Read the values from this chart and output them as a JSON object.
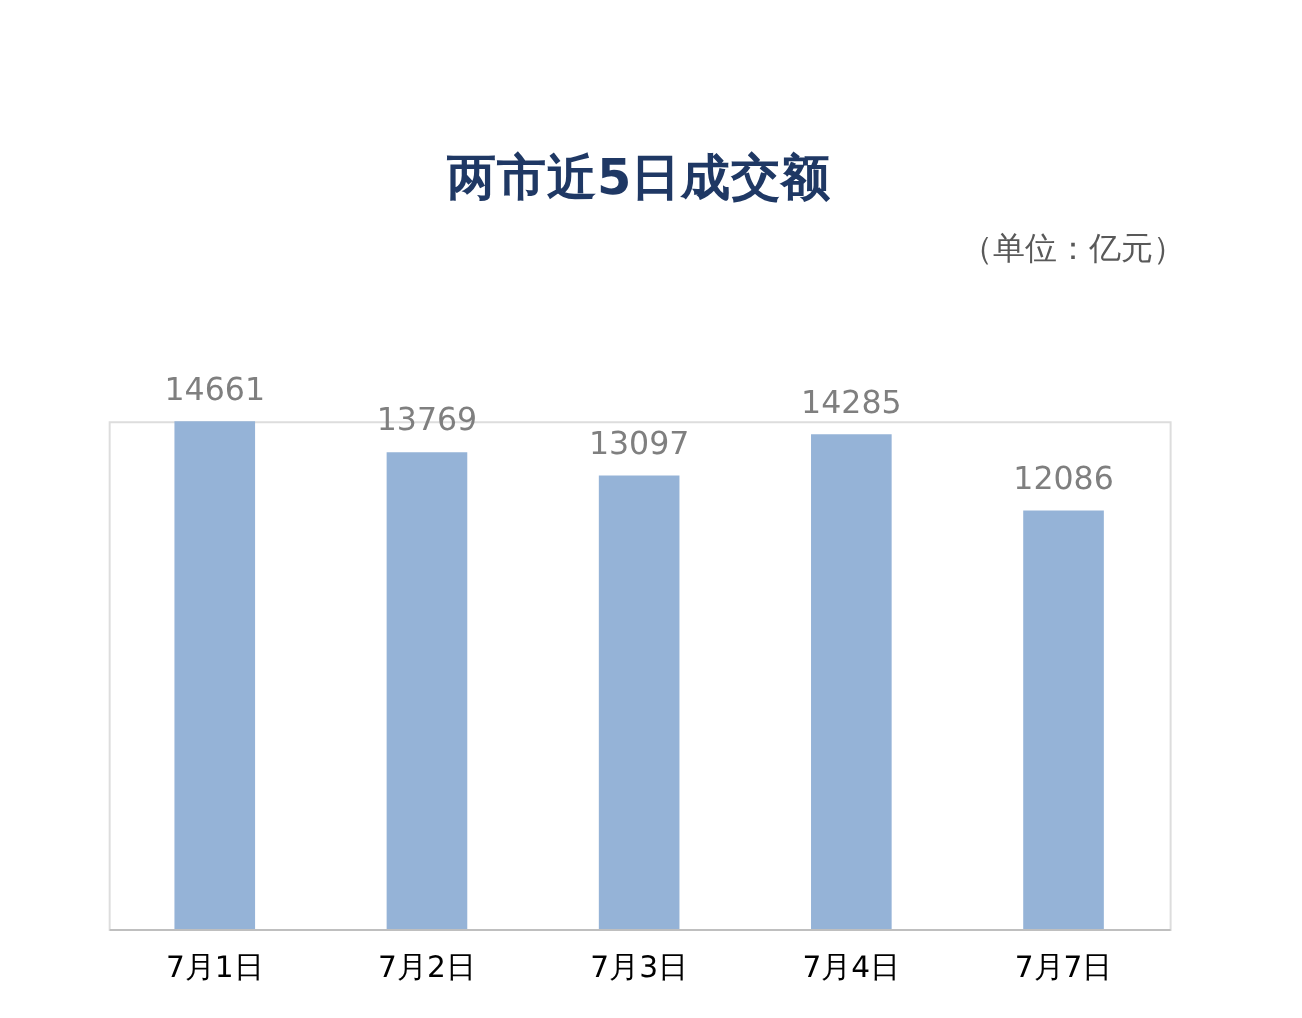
{
  "chart_data": {
    "type": "bar",
    "title": "两市近5日成交额",
    "annotations": [
      "（单位：亿元）"
    ],
    "categories": [
      "7月1日",
      "7月2日",
      "7月3日",
      "7月4日",
      "7月7日"
    ],
    "values": [
      14661,
      13769,
      13097,
      14285,
      12086
    ],
    "color": "#95b3d7",
    "data_labels": true,
    "grid": false
  }
}
